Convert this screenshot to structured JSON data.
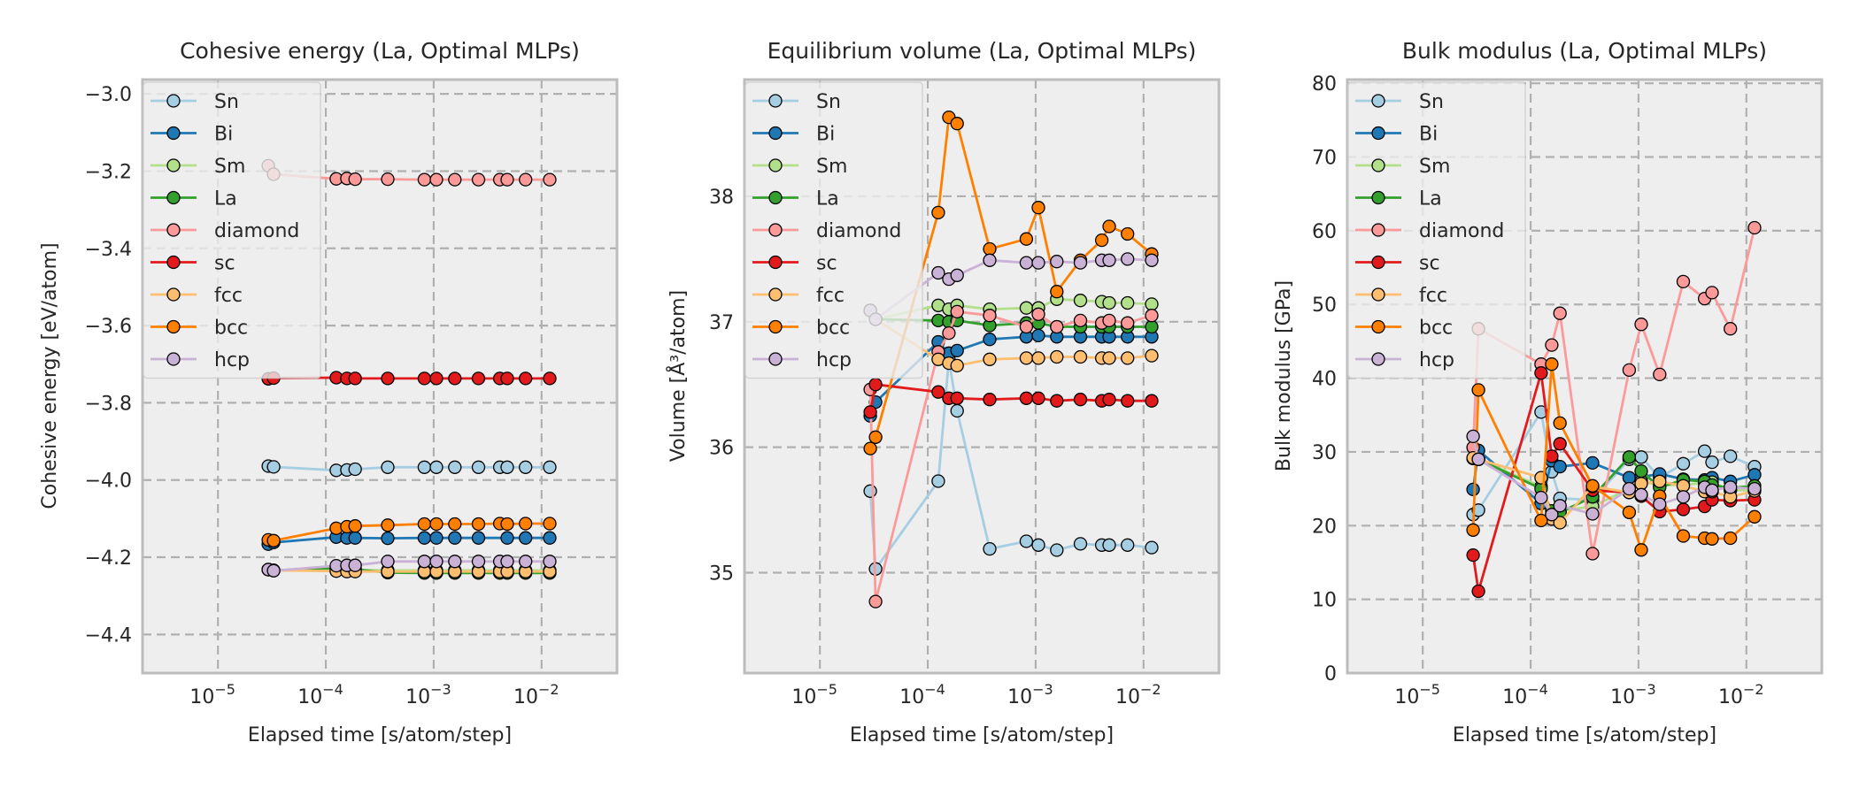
{
  "figure": {
    "background": "#ffffff",
    "axes_face": "#eeeeee",
    "axes_edge": "#bcbcbc",
    "grid_color": "#b0b0b0"
  },
  "chart_data": [
    {
      "type": "line",
      "title": "Cohesive energy (La, Optimal MLPs)",
      "xlabel": "Elapsed time [s/atom/step]",
      "ylabel": "Cohesive energy [eV/atom]",
      "xscale": "log",
      "xlim": [
        2e-06,
        0.05
      ],
      "ylim": [
        -4.5,
        -2.963
      ],
      "xticks": [
        1e-05,
        0.0001,
        0.001,
        0.01
      ],
      "xtick_labels": [
        {
          "base": "10",
          "exp": "−5"
        },
        {
          "base": "10",
          "exp": "−4"
        },
        {
          "base": "10",
          "exp": "−3"
        },
        {
          "base": "10",
          "exp": "−2"
        }
      ],
      "yticks": [
        -3.0,
        -3.2,
        -3.4,
        -3.6,
        -3.8,
        -4.0,
        -4.2,
        -4.4
      ],
      "ytick_labels": [
        "−3.0",
        "−3.2",
        "−3.4",
        "−3.6",
        "−3.8",
        "−4.0",
        "−4.2",
        "−4.4"
      ],
      "grid": true,
      "legend": "top-left",
      "x": [
        2.93e-05,
        3.28e-05,
        0.000125,
        0.000157,
        0.000187,
        0.000375,
        0.00082,
        0.00106,
        0.00157,
        0.0026,
        0.0041,
        0.0048,
        0.0071,
        0.0119
      ],
      "series": [
        {
          "name": "Sn",
          "color": "#a6cee3",
          "values": [
            -3.964,
            -3.966,
            -3.975,
            -3.974,
            -3.972,
            -3.967,
            -3.967,
            -3.967,
            -3.967,
            -3.967,
            -3.967,
            -3.967,
            -3.967,
            -3.967
          ]
        },
        {
          "name": "Bi",
          "color": "#1f78b4",
          "values": [
            -4.166,
            -4.162,
            -4.148,
            -4.15,
            -4.15,
            -4.151,
            -4.15,
            -4.15,
            -4.15,
            -4.15,
            null,
            -4.15,
            -4.15,
            -4.15
          ]
        },
        {
          "name": "Sm",
          "color": "#b2df8a",
          "values": [
            -4.232,
            -4.234,
            -4.232,
            -4.233,
            -4.233,
            -4.234,
            -4.234,
            -4.234,
            -4.234,
            -4.234,
            -4.234,
            -4.234,
            -4.234,
            -4.234
          ]
        },
        {
          "name": "La",
          "color": "#33a02c",
          "values": [
            -4.232,
            -4.234,
            -4.228,
            -4.23,
            -4.231,
            -4.24,
            -4.241,
            -4.241,
            -4.241,
            -4.241,
            -4.241,
            -4.241,
            -4.241,
            -4.241
          ]
        },
        {
          "name": "diamond",
          "color": "#fb9a99",
          "values": [
            -3.186,
            -3.208,
            -3.22,
            -3.219,
            -3.221,
            -3.221,
            -3.222,
            -3.222,
            -3.222,
            -3.222,
            -3.222,
            -3.222,
            -3.222,
            -3.222
          ]
        },
        {
          "name": "sc",
          "color": "#e31a1c",
          "values": [
            -3.738,
            -3.736,
            -3.735,
            -3.737,
            -3.737,
            -3.737,
            -3.737,
            -3.737,
            -3.737,
            -3.737,
            -3.737,
            -3.737,
            -3.737,
            -3.737
          ]
        },
        {
          "name": "fcc",
          "color": "#fdbf6f",
          "values": [
            -4.232,
            -4.234,
            -4.236,
            -4.237,
            -4.237,
            -4.237,
            -4.237,
            -4.237,
            -4.237,
            -4.237,
            -4.237,
            -4.237,
            -4.237,
            -4.237
          ]
        },
        {
          "name": "bcc",
          "color": "#ff7f00",
          "values": [
            -4.155,
            -4.157,
            -4.125,
            -4.121,
            -4.119,
            -4.117,
            -4.114,
            -4.114,
            -4.114,
            -4.114,
            -4.113,
            -4.114,
            -4.113,
            -4.113
          ]
        },
        {
          "name": "hcp",
          "color": "#cab2d6",
          "values": [
            -4.232,
            -4.235,
            -4.222,
            -4.221,
            -4.221,
            -4.211,
            -4.211,
            -4.211,
            -4.211,
            -4.211,
            -4.211,
            -4.211,
            -4.211,
            -4.211
          ]
        }
      ]
    },
    {
      "type": "line",
      "title": "Equilibrium volume (La, Optimal MLPs)",
      "xlabel": "Elapsed time [s/atom/step]",
      "ylabel": "Volume [Å³/atom]",
      "xscale": "log",
      "xlim": [
        2e-06,
        0.05
      ],
      "ylim": [
        34.2,
        38.93
      ],
      "xticks": [
        1e-05,
        0.0001,
        0.001,
        0.01
      ],
      "xtick_labels": [
        {
          "base": "10",
          "exp": "−5"
        },
        {
          "base": "10",
          "exp": "−4"
        },
        {
          "base": "10",
          "exp": "−3"
        },
        {
          "base": "10",
          "exp": "−2"
        }
      ],
      "yticks": [
        35,
        36,
        37,
        38
      ],
      "ytick_labels": [
        "35",
        "36",
        "37",
        "38"
      ],
      "grid": true,
      "legend": "top-left",
      "x": [
        2.93e-05,
        3.28e-05,
        0.000125,
        0.000157,
        0.000187,
        0.000375,
        0.00082,
        0.00106,
        0.00157,
        0.0026,
        0.0041,
        0.0048,
        0.0071,
        0.0119
      ],
      "series": [
        {
          "name": "Sn",
          "color": "#a6cee3",
          "values": [
            35.65,
            35.03,
            35.73,
            36.7,
            36.29,
            35.19,
            35.25,
            35.22,
            35.18,
            35.23,
            35.22,
            35.22,
            35.22,
            35.2
          ]
        },
        {
          "name": "Bi",
          "color": "#1f78b4",
          "values": [
            36.25,
            36.36,
            36.84,
            36.75,
            36.77,
            36.86,
            36.88,
            36.89,
            36.88,
            36.88,
            36.88,
            36.88,
            36.88,
            36.88
          ]
        },
        {
          "name": "Sm",
          "color": "#b2df8a",
          "values": [
            37.09,
            37.02,
            37.13,
            37.1,
            37.13,
            37.1,
            37.11,
            37.11,
            37.18,
            37.17,
            37.16,
            37.15,
            37.15,
            37.14
          ]
        },
        {
          "name": "La",
          "color": "#33a02c",
          "values": [
            37.09,
            37.02,
            37.01,
            37.0,
            37.01,
            36.97,
            36.99,
            36.99,
            36.96,
            36.96,
            36.96,
            36.96,
            36.96,
            36.96
          ]
        },
        {
          "name": "diamond",
          "color": "#fb9a99",
          "values": [
            36.46,
            34.77,
            36.76,
            36.91,
            37.08,
            37.05,
            36.96,
            37.06,
            36.96,
            37.01,
            36.99,
            37.01,
            36.99,
            37.05
          ]
        },
        {
          "name": "sc",
          "color": "#e31a1c",
          "values": [
            36.28,
            36.5,
            36.44,
            36.39,
            36.39,
            36.38,
            36.39,
            36.39,
            36.37,
            36.38,
            36.37,
            36.38,
            36.37,
            36.37
          ]
        },
        {
          "name": "fcc",
          "color": "#fdbf6f",
          "values": [
            37.09,
            37.02,
            36.7,
            36.67,
            36.65,
            36.7,
            36.71,
            36.71,
            36.72,
            36.72,
            36.71,
            36.71,
            36.71,
            36.73
          ]
        },
        {
          "name": "bcc",
          "color": "#ff7f00",
          "values": [
            35.99,
            36.08,
            37.87,
            38.63,
            38.58,
            37.58,
            37.66,
            37.91,
            37.24,
            37.49,
            37.65,
            37.76,
            37.7,
            37.54
          ]
        },
        {
          "name": "hcp",
          "color": "#cab2d6",
          "values": [
            37.09,
            37.02,
            37.39,
            37.34,
            37.37,
            37.49,
            37.47,
            37.47,
            37.48,
            37.47,
            37.49,
            37.49,
            37.5,
            37.49
          ]
        }
      ]
    },
    {
      "type": "line",
      "title": "Bulk modulus (La, Optimal MLPs)",
      "xlabel": "Elapsed time [s/atom/step]",
      "ylabel": "Bulk modulus [GPa]",
      "xscale": "log",
      "xlim": [
        2e-06,
        0.05
      ],
      "ylim": [
        0,
        80.5
      ],
      "xticks": [
        1e-05,
        0.0001,
        0.001,
        0.01
      ],
      "xtick_labels": [
        {
          "base": "10",
          "exp": "−5"
        },
        {
          "base": "10",
          "exp": "−4"
        },
        {
          "base": "10",
          "exp": "−3"
        },
        {
          "base": "10",
          "exp": "−2"
        }
      ],
      "yticks": [
        0,
        10,
        20,
        30,
        40,
        50,
        60,
        70,
        80
      ],
      "ytick_labels": [
        "0",
        "10",
        "20",
        "30",
        "40",
        "50",
        "60",
        "70",
        "80"
      ],
      "grid": true,
      "legend": "top-left",
      "x": [
        2.93e-05,
        3.28e-05,
        0.000125,
        0.000157,
        0.000187,
        0.000375,
        0.00082,
        0.00106,
        0.00157,
        0.0026,
        0.0041,
        0.0048,
        0.0071,
        0.0119
      ],
      "series": [
        {
          "name": "Sn",
          "color": "#a6cee3",
          "values": [
            21.5,
            22.1,
            35.4,
            27.3,
            23.7,
            23.5,
            29.0,
            29.3,
            26.5,
            28.4,
            30.1,
            28.6,
            29.4,
            28.0
          ]
        },
        {
          "name": "Bi",
          "color": "#1f78b4",
          "values": [
            24.9,
            30.2,
            23.0,
            28.8,
            28.0,
            28.5,
            26.5,
            26.6,
            27.0,
            26.3,
            26.2,
            26.5,
            26.0,
            26.9
          ]
        },
        {
          "name": "Sm",
          "color": "#b2df8a",
          "values": [
            29.1,
            29.0,
            25.3,
            21.5,
            22.0,
            22.6,
            25.0,
            26.0,
            25.5,
            25.5,
            25.8,
            25.9,
            24.8,
            24.8
          ]
        },
        {
          "name": "La",
          "color": "#33a02c",
          "values": [
            29.1,
            29.0,
            25.0,
            22.0,
            21.8,
            23.9,
            29.3,
            27.4,
            25.2,
            26.2,
            26.0,
            25.5,
            25.1,
            25.4
          ]
        },
        {
          "name": "diamond",
          "color": "#fb9a99",
          "values": [
            30.6,
            46.7,
            41.9,
            44.5,
            48.8,
            16.2,
            41.1,
            47.3,
            40.5,
            53.1,
            50.8,
            51.6,
            46.7,
            60.4
          ]
        },
        {
          "name": "sc",
          "color": "#e31a1c",
          "values": [
            16.0,
            11.1,
            40.7,
            29.4,
            31.1,
            24.8,
            24.5,
            24.0,
            21.9,
            22.2,
            22.6,
            23.5,
            23.4,
            23.5
          ]
        },
        {
          "name": "fcc",
          "color": "#fdbf6f",
          "values": [
            29.2,
            29.0,
            26.5,
            20.9,
            20.4,
            25.3,
            24.5,
            25.7,
            26.0,
            25.4,
            24.6,
            24.6,
            23.9,
            24.7
          ]
        },
        {
          "name": "bcc",
          "color": "#ff7f00",
          "values": [
            19.4,
            38.4,
            20.7,
            41.9,
            33.9,
            25.4,
            21.8,
            16.7,
            24.0,
            18.6,
            18.3,
            18.2,
            18.3,
            21.2
          ]
        },
        {
          "name": "hcp",
          "color": "#cab2d6",
          "values": [
            32.1,
            29.0,
            23.8,
            21.5,
            22.7,
            21.6,
            25.0,
            24.2,
            22.9,
            23.9,
            25.2,
            24.8,
            25.2,
            25.0
          ]
        }
      ]
    }
  ]
}
